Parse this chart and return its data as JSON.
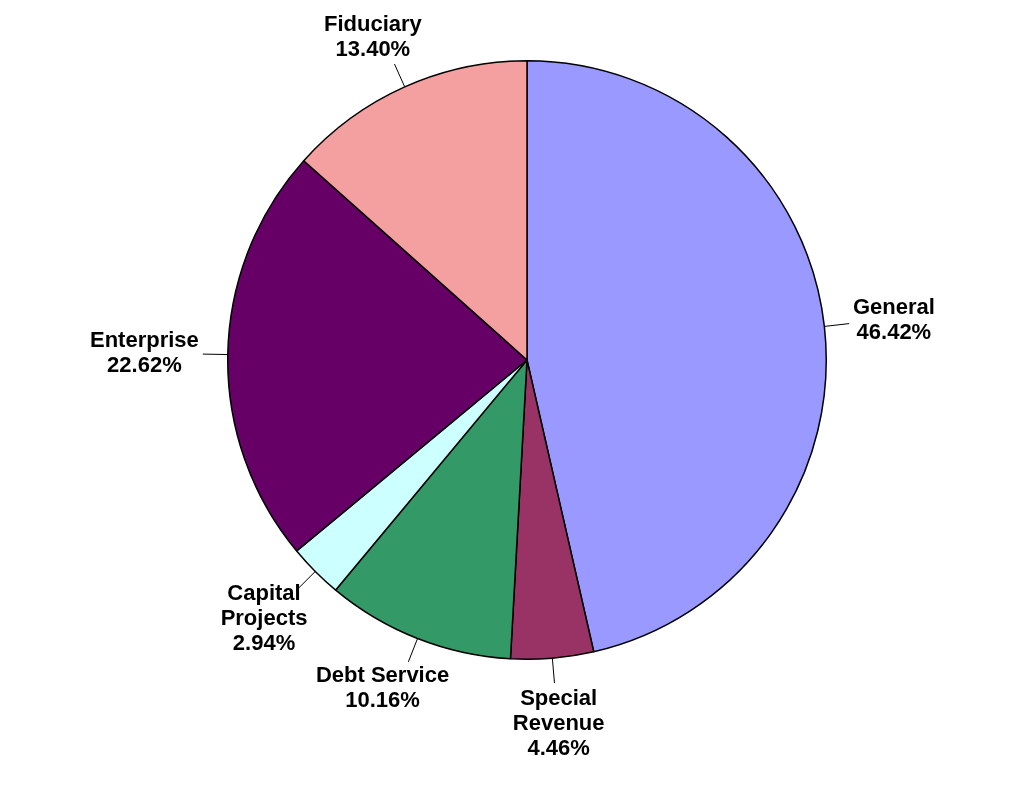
{
  "chart_data": {
    "type": "pie",
    "categories": [
      "General",
      "Special Revenue",
      "Debt Service",
      "Capital Projects",
      "Enterprise",
      "Fiduciary"
    ],
    "values": [
      46.42,
      4.46,
      10.16,
      2.94,
      22.62,
      13.4
    ],
    "value_labels": [
      "46.42%",
      "4.46%",
      "10.16%",
      "2.94%",
      "22.62%",
      "13.40%"
    ],
    "colors": [
      "#9999ff",
      "#993366",
      "#339966",
      "#ccffff",
      "#660066",
      "#f4a0a0"
    ],
    "legend": false
  }
}
